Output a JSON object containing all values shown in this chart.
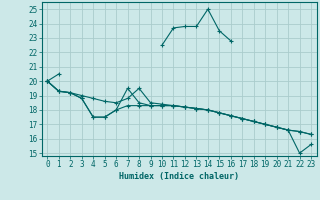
{
  "xlabel": "Humidex (Indice chaleur)",
  "bg_color": "#cce8e8",
  "grid_color": "#aacccc",
  "line_color": "#006666",
  "xlim": [
    -0.5,
    23.5
  ],
  "ylim": [
    14.8,
    25.5
  ],
  "yticks": [
    15,
    16,
    17,
    18,
    19,
    20,
    21,
    22,
    23,
    24,
    25
  ],
  "xticks": [
    0,
    1,
    2,
    3,
    4,
    5,
    6,
    7,
    8,
    9,
    10,
    11,
    12,
    13,
    14,
    15,
    16,
    17,
    18,
    19,
    20,
    21,
    22,
    23
  ],
  "series": [
    [
      20.0,
      20.5,
      null,
      null,
      null,
      null,
      null,
      null,
      null,
      null,
      22.5,
      23.7,
      23.8,
      23.8,
      25.0,
      23.5,
      22.8,
      null,
      null,
      null,
      null,
      null,
      null,
      null
    ],
    [
      20.0,
      19.3,
      19.2,
      18.8,
      17.5,
      17.5,
      18.0,
      19.5,
      18.5,
      18.3,
      18.3,
      18.3,
      18.2,
      18.1,
      18.0,
      17.8,
      17.6,
      17.4,
      17.2,
      17.0,
      16.8,
      16.6,
      16.5,
      16.3
    ],
    [
      20.0,
      19.3,
      19.2,
      18.8,
      17.5,
      17.5,
      18.0,
      18.3,
      18.3,
      18.3,
      18.3,
      18.3,
      18.2,
      18.1,
      18.0,
      17.8,
      17.6,
      17.4,
      17.2,
      17.0,
      16.8,
      16.6,
      16.5,
      16.3
    ],
    [
      20.0,
      19.3,
      19.2,
      19.0,
      18.8,
      18.6,
      18.5,
      18.8,
      19.5,
      18.5,
      18.4,
      18.3,
      18.2,
      18.1,
      18.0,
      17.8,
      17.6,
      17.4,
      17.2,
      17.0,
      16.8,
      16.6,
      15.0,
      15.6
    ]
  ]
}
